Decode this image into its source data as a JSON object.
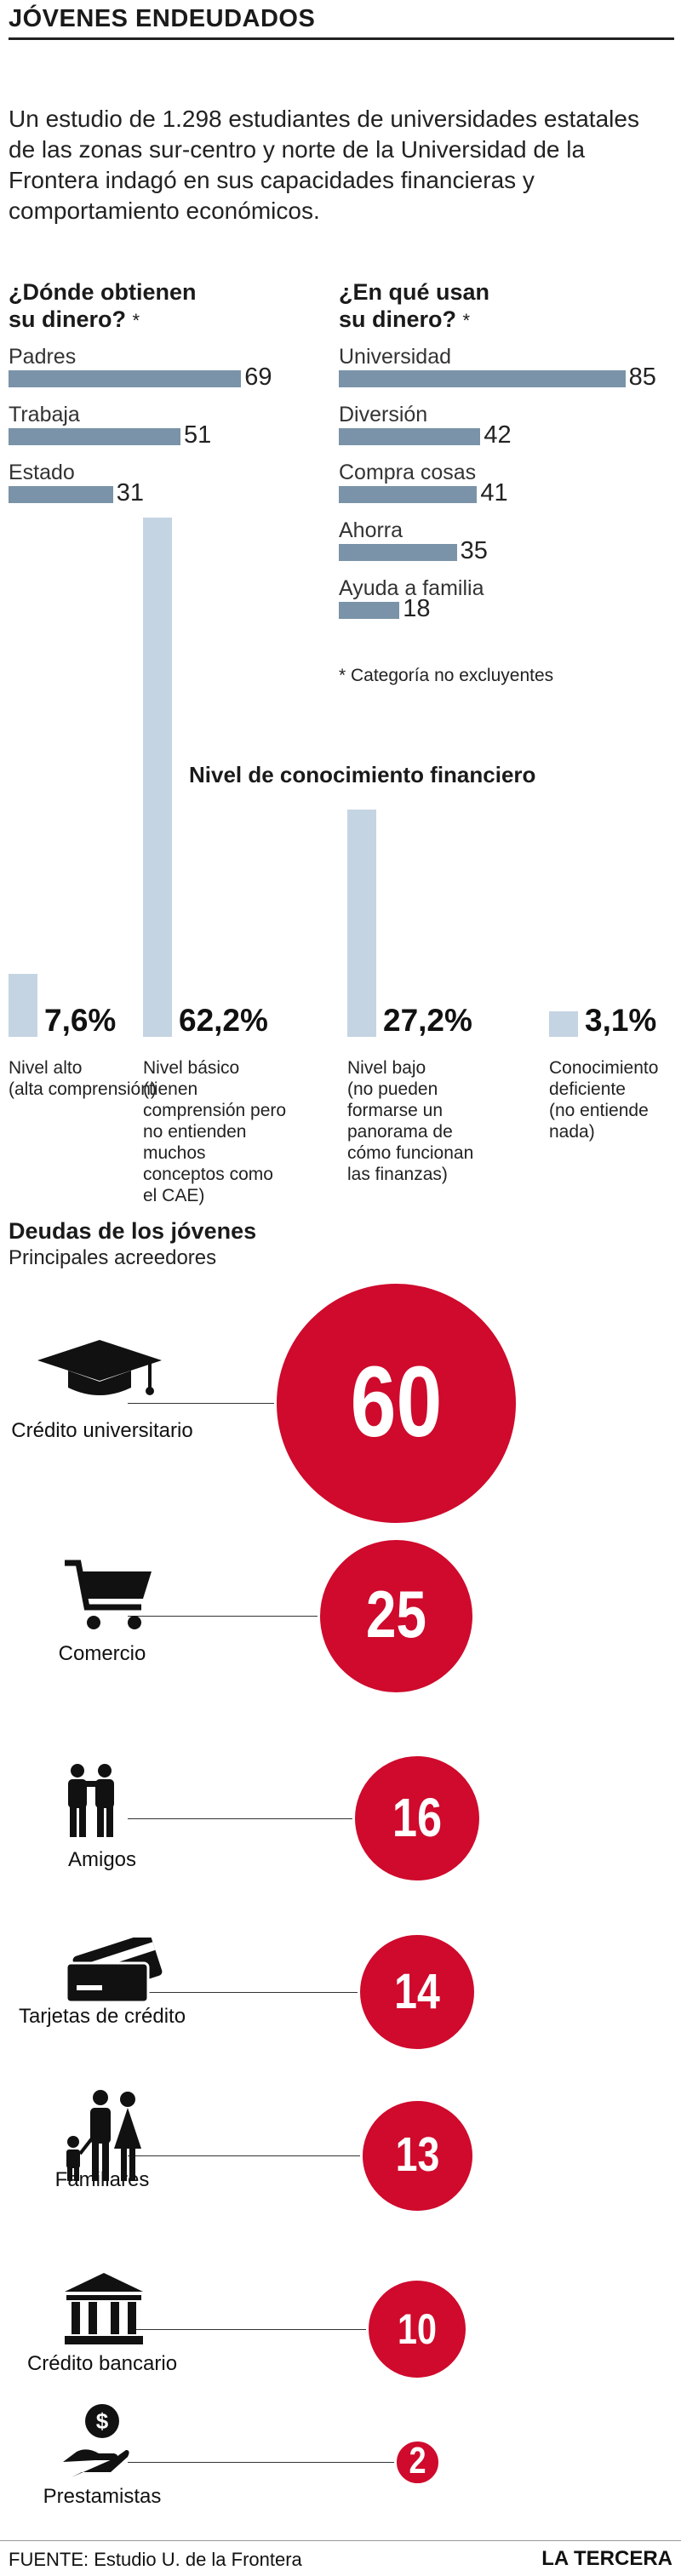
{
  "header": {
    "title": "JÓVENES ENDEUDADOS",
    "intro": "Un estudio de 1.298 estudiantes de universidades estatales de las zonas sur-centro y norte de la Universidad de la Frontera indagó en sus capacidades financieras y comportamiento económicos."
  },
  "chart_data": [
    {
      "type": "bar",
      "title": "¿Dónde obtienen su dinero?",
      "title_line1": "¿Dónde obtienen",
      "title_line2": "su dinero?",
      "categories": [
        "Padres",
        "Trabaja",
        "Estado"
      ],
      "values": [
        69,
        51,
        31
      ],
      "color": "#7a93a8"
    },
    {
      "type": "bar",
      "title": "¿En qué usan su dinero?",
      "title_line1": "¿En qué usan",
      "title_line2": "su dinero?",
      "categories": [
        "Universidad",
        "Diversión",
        "Compra cosas",
        "Ahorra",
        "Ayuda a familia"
      ],
      "values": [
        85,
        42,
        41,
        35,
        18
      ],
      "color": "#7a93a8"
    },
    {
      "type": "bar",
      "title": "Nivel de conocimiento financiero",
      "unit": "%",
      "categories": [
        "Nivel alto",
        "Nivel básico",
        "Nivel bajo",
        "Conocimiento deficiente"
      ],
      "values": [
        7.6,
        62.2,
        27.2,
        3.1
      ],
      "value_labels": [
        "7,6%",
        "62,2%",
        "27,2%",
        "3,1%"
      ],
      "descriptions": [
        "(alta comprensión)",
        "(tienen comprensión pero no entienden muchos conceptos como el CAE)",
        "(no pueden formarse un panorama de cómo funcionan las finanzas)",
        "(no entiende nada)"
      ],
      "color": "#c4d4e2"
    },
    {
      "type": "bubble",
      "title": "Deudas de los jóvenes",
      "subtitle": "Principales acreedores",
      "categories": [
        "Crédito universitario",
        "Comercio",
        "Amigos",
        "Tarjetas de crédito",
        "Familiares",
        "Crédito bancario",
        "Prestamistas"
      ],
      "values": [
        60,
        25,
        16,
        14,
        13,
        10,
        2
      ],
      "icons": [
        "graduation-cap-icon",
        "shopping-cart-icon",
        "friends-icon",
        "credit-card-icon",
        "family-icon",
        "bank-icon",
        "money-hand-icon"
      ],
      "color": "#cf0a2c"
    }
  ],
  "footnote": "* Categoría no excluyentes",
  "star": "*",
  "footer": {
    "source": "FUENTE: Estudio U. de la Frontera",
    "brand": "LA TERCERA"
  }
}
